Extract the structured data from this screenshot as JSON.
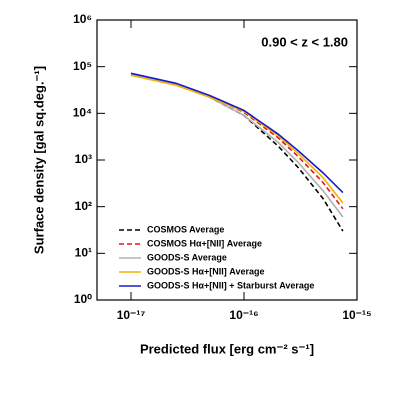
{
  "chart_data": {
    "type": "line",
    "xlabel": "Predicted flux [erg cm⁻² s⁻¹]",
    "ylabel": "Surface density [gal sq.deg.⁻¹]",
    "annotation": "0.90 < z < 1.80",
    "xscale": "log",
    "yscale": "log",
    "xlim": [
      5e-18,
      1e-15
    ],
    "ylim": [
      1,
      1000000
    ],
    "xticks": [
      {
        "value": 1e-17,
        "label": "10⁻¹⁷"
      },
      {
        "value": 1e-16,
        "label": "10⁻¹⁶"
      },
      {
        "value": 1e-15,
        "label": "10⁻¹⁵"
      }
    ],
    "yticks": [
      {
        "value": 1,
        "label": "10⁰"
      },
      {
        "value": 10,
        "label": "10¹"
      },
      {
        "value": 100,
        "label": "10²"
      },
      {
        "value": 1000,
        "label": "10³"
      },
      {
        "value": 10000,
        "label": "10⁴"
      },
      {
        "value": 100000,
        "label": "10⁵"
      },
      {
        "value": 1000000,
        "label": "10⁶"
      }
    ],
    "legend": "lower left",
    "x": [
      1e-17,
      2.5e-17,
      5e-17,
      1e-16,
      2e-16,
      3e-16,
      5e-16,
      7.5e-16
    ],
    "series": [
      {
        "name": "COSMOS Average",
        "color": "#000000",
        "dash": true,
        "values": [
          70000,
          42000,
          22000,
          9000,
          2000,
          700,
          150,
          30
        ]
      },
      {
        "name": "COSMOS Hα+[NII] Average",
        "color": "#e8141c",
        "dash": true,
        "values": [
          70000,
          42000,
          23000,
          10500,
          3000,
          1200,
          330,
          90
        ]
      },
      {
        "name": "GOODS-S Average",
        "color": "#b0b0b0",
        "dash": false,
        "values": [
          68000,
          42000,
          22000,
          9000,
          2400,
          900,
          220,
          60
        ]
      },
      {
        "name": "GOODS-S Hα+[NII] Average",
        "color": "#f0b400",
        "dash": false,
        "values": [
          65000,
          40000,
          22000,
          11000,
          3300,
          1400,
          420,
          120
        ]
      },
      {
        "name": "GOODS-S Hα+[NII] + Starburst Average",
        "color": "#1a1ad0",
        "dash": false,
        "values": [
          72000,
          44000,
          24000,
          11500,
          3600,
          1600,
          530,
          200
        ]
      }
    ]
  }
}
